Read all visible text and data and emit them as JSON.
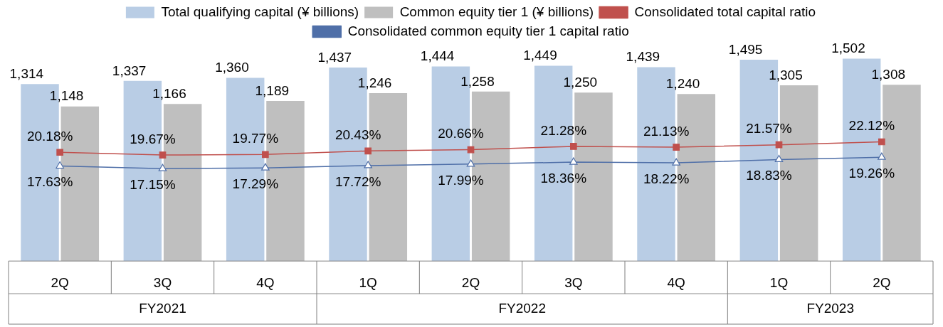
{
  "chart_data": {
    "type": "bar",
    "categories": [
      "2Q",
      "3Q",
      "4Q",
      "1Q",
      "2Q",
      "3Q",
      "4Q",
      "1Q",
      "2Q"
    ],
    "series": [
      {
        "name": "Total qualifying capital (¥ billions)",
        "color": "#b9cde5",
        "values": [
          1314,
          1337,
          1360,
          1437,
          1444,
          1449,
          1439,
          1495,
          1502
        ],
        "value_labels": [
          "1,314",
          "1,337",
          "1,360",
          "1,437",
          "1,444",
          "1,449",
          "1,439",
          "1,495",
          "1,502"
        ]
      },
      {
        "name": "Common equity tier 1 (¥ billions)",
        "color": "#bfbfbf",
        "values": [
          1148,
          1166,
          1189,
          1246,
          1258,
          1250,
          1240,
          1305,
          1308
        ],
        "value_labels": [
          "1,148",
          "1,166",
          "1,189",
          "1,246",
          "1,258",
          "1,250",
          "1,240",
          "1,305",
          "1,308"
        ]
      },
      {
        "name": "Consolidated total capital ratio",
        "type": "line",
        "axis": "y2",
        "marker": "square",
        "color": "#c0504d",
        "values": [
          20.18,
          19.67,
          19.77,
          20.43,
          20.66,
          21.28,
          21.13,
          21.57,
          22.12
        ],
        "value_labels": [
          "20.18%",
          "19.67%",
          "19.77%",
          "20.43%",
          "20.66%",
          "21.28%",
          "21.13%",
          "21.57%",
          "22.12%"
        ]
      },
      {
        "name": "Consolidated common equity tier 1 capital ratio",
        "type": "line",
        "axis": "y2",
        "marker": "triangle",
        "color": "#4f6fa8",
        "values": [
          17.63,
          17.15,
          17.29,
          17.72,
          17.99,
          18.36,
          18.22,
          18.83,
          19.26
        ],
        "value_labels": [
          "17.63%",
          "17.15%",
          "17.29%",
          "17.72%",
          "17.99%",
          "18.36%",
          "18.22%",
          "18.83%",
          "19.26%"
        ]
      }
    ],
    "tick_labels": "x",
    "legend": "top",
    "annotations": [
      "FY2021",
      "FY2022",
      "FY2023"
    ]
  }
}
